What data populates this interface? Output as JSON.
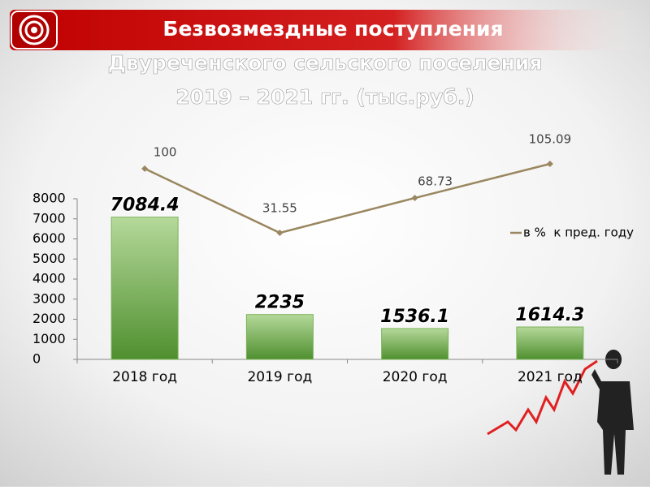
{
  "chart_data": {
    "type": "bar",
    "title": [
      "Безвозмездные поступления",
      "Двуреченского сельского поселения",
      "2019 – 2021 гг. (тыс.руб.)"
    ],
    "categories": [
      "2018 год",
      "2019 год",
      "2020 год",
      "2021 год"
    ],
    "values": [
      7084.4,
      2235,
      1536.1,
      1614.3
    ],
    "color": "#7bb35a",
    "ylim": [
      0,
      8000
    ],
    "yticks": [
      0,
      1000,
      2000,
      3000,
      4000,
      5000,
      6000,
      7000,
      8000
    ],
    "grid": false,
    "series": [
      {
        "type": "line",
        "name": "в %  к пред. году",
        "color": "#9a8760",
        "values": [
          100,
          31.55,
          68.73,
          105.09
        ]
      }
    ],
    "legend": "right"
  }
}
